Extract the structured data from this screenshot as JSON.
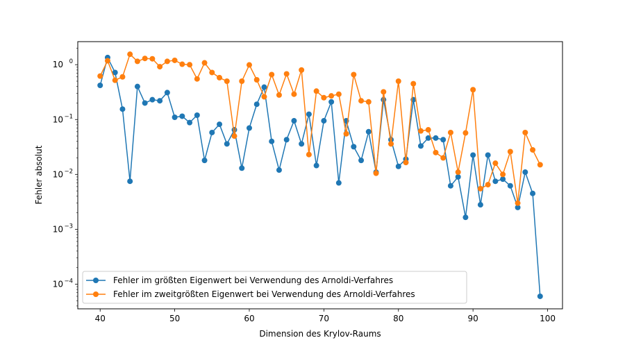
{
  "chart_data": {
    "type": "line",
    "title": "",
    "xlabel": "Dimension des Krylov-Raums",
    "ylabel": "Fehler absolut",
    "xlim": [
      37,
      102
    ],
    "ylim_log10": [
      -4.45,
      0.42
    ],
    "yscale": "log",
    "xticks": [
      40,
      50,
      60,
      70,
      80,
      90,
      100
    ],
    "xtick_labels": [
      "40",
      "50",
      "60",
      "70",
      "80",
      "90",
      "100"
    ],
    "yticks_exponent": [
      -4,
      -3,
      -2,
      -1,
      0
    ],
    "ytick_labels": [
      "10",
      "10",
      "10",
      "10",
      "10"
    ],
    "ytick_exponent_labels": [
      "−4",
      "−3",
      "−2",
      "−1",
      "0"
    ],
    "legend_position": "lower-left",
    "grid": false,
    "x": [
      40,
      41,
      42,
      43,
      44,
      45,
      46,
      47,
      48,
      49,
      50,
      51,
      52,
      53,
      54,
      55,
      56,
      57,
      58,
      59,
      60,
      61,
      62,
      63,
      64,
      65,
      66,
      67,
      68,
      69,
      70,
      71,
      72,
      73,
      74,
      75,
      76,
      77,
      78,
      79,
      80,
      81,
      82,
      83,
      84,
      85,
      86,
      87,
      88,
      89,
      90,
      91,
      92,
      93,
      94,
      95,
      96,
      97,
      98,
      99
    ],
    "series": [
      {
        "name": "Fehler im größten Eigenwert bei Verwendung des Arnoldi-Verfahres",
        "color": "#1f77b4",
        "values": [
          0.42,
          1.35,
          0.72,
          0.155,
          0.0075,
          0.4,
          0.2,
          0.23,
          0.22,
          0.31,
          0.11,
          0.115,
          0.088,
          0.12,
          0.018,
          0.058,
          0.082,
          0.036,
          0.065,
          0.013,
          0.07,
          0.19,
          0.39,
          0.04,
          0.012,
          0.043,
          0.095,
          0.036,
          0.125,
          0.0145,
          0.095,
          0.21,
          0.007,
          0.095,
          0.032,
          0.018,
          0.06,
          0.011,
          0.23,
          0.043,
          0.014,
          0.019,
          0.23,
          0.033,
          0.046,
          0.046,
          0.043,
          0.0062,
          0.009,
          0.00165,
          0.0225,
          0.0028,
          0.0225,
          0.0075,
          0.0082,
          0.0062,
          0.0025,
          0.011,
          0.0045,
          6e-05
        ]
      },
      {
        "name": "Fehler im zweitgrößten Eigenwert bei Verwendung des Arnoldi-Verfahres",
        "color": "#ff7f0e",
        "values": [
          0.62,
          1.18,
          0.52,
          0.6,
          1.55,
          1.15,
          1.3,
          1.28,
          0.92,
          1.15,
          1.2,
          1.02,
          1.0,
          0.55,
          1.08,
          0.72,
          0.58,
          0.5,
          0.05,
          0.5,
          0.99,
          0.53,
          0.26,
          0.66,
          0.28,
          0.68,
          0.29,
          0.8,
          0.023,
          0.33,
          0.25,
          0.27,
          0.29,
          0.055,
          0.66,
          0.22,
          0.21,
          0.0105,
          0.32,
          0.036,
          0.5,
          0.0165,
          0.45,
          0.062,
          0.065,
          0.025,
          0.02,
          0.058,
          0.011,
          0.057,
          0.35,
          0.0055,
          0.0065,
          0.016,
          0.01,
          0.026,
          0.003,
          0.058,
          0.028,
          0.015
        ]
      }
    ]
  }
}
